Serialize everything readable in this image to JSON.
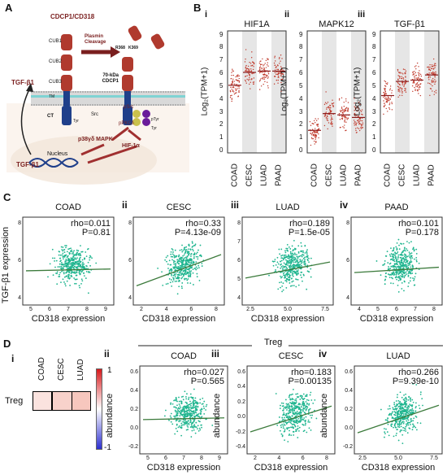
{
  "panels": {
    "A": {
      "letter": "A",
      "labels": {
        "cdcp1": "CDCP1/CD318",
        "cub1": "CUB1",
        "cub2": "CUB2",
        "cub3": "CUB3",
        "plasmin": "Plasmin Cleavage",
        "r368": "R368",
        "k369": "K369",
        "kda": "70-kDa CDCP1",
        "tm": "TM",
        "ct": "CT",
        "tyr1": "Tyr",
        "tyr2": "Tyr",
        "src": "Src",
        "psrc": "pSrc",
        "ppkc": "pPKCδ",
        "ptyr": "pTyr",
        "p38": "p38γδ MAPK",
        "hif": "HIF-1α",
        "nucleus": "Nucleus",
        "tgf1": "TGF-β1",
        "tgf2": "TGF-β1"
      }
    },
    "B": {
      "letter": "B",
      "subplots": [
        {
          "roman": "i",
          "title": "HIF1A",
          "medians": [
            5.0,
            6.0,
            6.1,
            6.1
          ]
        },
        {
          "roman": "ii",
          "title": "MAPK12",
          "medians": [
            1.5,
            2.8,
            2.7,
            2.5
          ]
        },
        {
          "roman": "iii",
          "title": "TGF-β1",
          "medians": [
            4.2,
            5.3,
            5.4,
            5.8
          ]
        }
      ],
      "ylabel": "Log₂(TPM+1)",
      "yticks": [
        "0",
        "1",
        "2",
        "3",
        "4",
        "5",
        "6",
        "7",
        "8",
        "9"
      ],
      "categories": [
        "COAD",
        "CESC",
        "LUAD",
        "PAAD"
      ]
    },
    "C": {
      "letter": "C",
      "ylabel": "TGF-β1 expression",
      "xlabel": "CD318 expression",
      "subplots": [
        {
          "roman": "i",
          "title": "COAD",
          "rho": "rho=0.011",
          "p": "P=0.81",
          "xticks": [
            "5",
            "6",
            "7",
            "8",
            "9"
          ],
          "yticks": [
            "8",
            "6",
            "4"
          ]
        },
        {
          "roman": "ii",
          "title": "CESC",
          "rho": "rho=0.33",
          "p": "P=4.13e-09",
          "xticks": [
            "2",
            "4",
            "6",
            "8"
          ],
          "yticks": [
            "8",
            "6",
            "4"
          ]
        },
        {
          "roman": "iii",
          "title": "LUAD",
          "rho": "rho=0.189",
          "p": "P=1.5e-05",
          "xticks": [
            "2.5",
            "5.0",
            "7.5"
          ],
          "yticks": [
            "8",
            "7",
            "6",
            "5",
            "4"
          ]
        },
        {
          "roman": "iv",
          "title": "PAAD",
          "rho": "rho=0.101",
          "p": "P=0.178",
          "xticks": [
            "4",
            "5",
            "6",
            "7",
            "8"
          ],
          "yticks": [
            "8",
            "6",
            "4"
          ]
        }
      ]
    },
    "D": {
      "letter": "D",
      "group_title": "Treg",
      "heatmap": {
        "roman": "i",
        "row_label": "Treg",
        "columns": [
          "COAD",
          "CESC",
          "LUAD"
        ],
        "colorbar_max": "1",
        "colorbar_min": "-1",
        "cell_colors": [
          "#fbe3df",
          "#f8d2cb",
          "#f7c7be"
        ]
      },
      "ylabel": "abundance",
      "xlabel": "CD318 expression",
      "subplots": [
        {
          "roman": "ii",
          "title": "COAD",
          "rho": "rho=0.027",
          "p": "P=0.565",
          "xticks": [
            "5",
            "6",
            "7",
            "8",
            "9"
          ],
          "yticks": [
            "0.6",
            "0.4",
            "0.2",
            "0.0",
            "-0.2"
          ]
        },
        {
          "roman": "iii",
          "title": "CESC",
          "rho": "rho=0.183",
          "p": "P=0.00135",
          "xticks": [
            "2",
            "4",
            "6",
            "8"
          ],
          "yticks": [
            "0.6",
            "0.4",
            "0.2",
            "0.0",
            "-0.2",
            "-0.4"
          ]
        },
        {
          "roman": "iv",
          "title": "LUAD",
          "rho": "rho=0.266",
          "p": "P=9.39e-10",
          "xticks": [
            "2.5",
            "5.0",
            "7.5"
          ],
          "yticks": [
            "0.6",
            "0.4",
            "0.2",
            "0.0",
            "-0.2"
          ]
        }
      ]
    }
  },
  "colors": {
    "violin_point": "#c0392b",
    "violin_median": "#8b1a1a",
    "scatter_point": "#1fb58f",
    "fit_line": "#3b7a3b",
    "stripe": "#e6e6e6",
    "receptor": "#b03a2e",
    "membrane": "#bfbfbf"
  }
}
